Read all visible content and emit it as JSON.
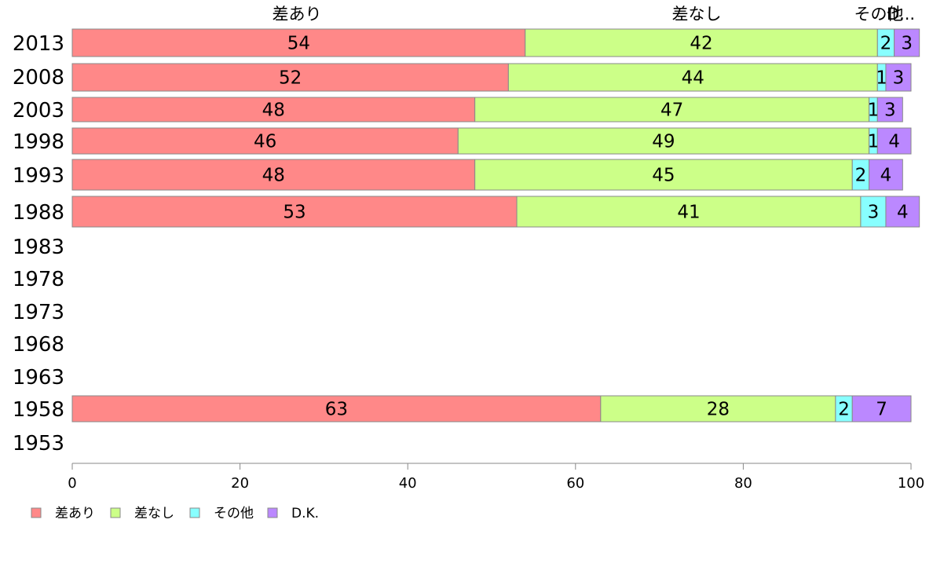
{
  "chart_data": {
    "type": "bar",
    "orientation": "horizontal",
    "stacked": true,
    "categories": [
      "2013",
      "2008",
      "2003",
      "1998",
      "1993",
      "1988",
      "1983",
      "1978",
      "1973",
      "1968",
      "1963",
      "1958",
      "1953"
    ],
    "series": [
      {
        "name": "差あり",
        "color": "#ff8888",
        "values": [
          54,
          52,
          48,
          46,
          48,
          53,
          null,
          null,
          null,
          null,
          null,
          63,
          null
        ]
      },
      {
        "name": "差なし",
        "color": "#ccff88",
        "values": [
          42,
          44,
          47,
          49,
          45,
          41,
          null,
          null,
          null,
          null,
          null,
          28,
          null
        ]
      },
      {
        "name": "その他",
        "color": "#88ffff",
        "values": [
          2,
          1,
          1,
          1,
          2,
          3,
          null,
          null,
          null,
          null,
          null,
          2,
          null
        ]
      },
      {
        "name": "D.K.",
        "color": "#bb88ff",
        "values": [
          3,
          3,
          3,
          4,
          4,
          4,
          null,
          null,
          null,
          null,
          null,
          7,
          null
        ]
      }
    ],
    "top_labels": [
      "差あり",
      "差なし",
      "その他",
      "D..."
    ],
    "xlim": [
      0,
      100
    ],
    "x_ticks": [
      "0",
      "20",
      "40",
      "60",
      "80",
      "100"
    ],
    "legend_placement": "bottom-left",
    "grid": false
  }
}
